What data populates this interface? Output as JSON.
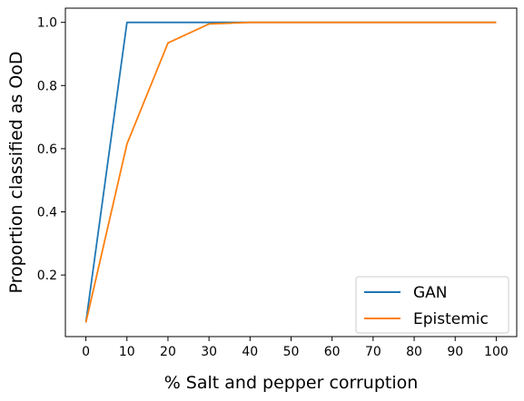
{
  "chart_data": {
    "type": "line",
    "xlabel": "% Salt and pepper corruption",
    "ylabel": "Proportion classified as OoD",
    "xlim": [
      -5,
      105
    ],
    "ylim": [
      0.005,
      1.045
    ],
    "x_ticks": [
      0,
      10,
      20,
      30,
      40,
      50,
      60,
      70,
      80,
      90,
      100
    ],
    "y_ticks": [
      0.2,
      0.4,
      0.6,
      0.8,
      1.0
    ],
    "y_tick_labels": [
      "0.2",
      "0.4",
      "0.6",
      "0.8",
      "1.0"
    ],
    "grid": false,
    "legend_position": "bottom-right",
    "x": [
      0,
      10,
      20,
      30,
      40,
      50,
      60,
      70,
      80,
      90,
      100
    ],
    "series": [
      {
        "name": "GAN",
        "color": "#1f77b4",
        "values": [
          0.05,
          1.0,
          1.0,
          1.0,
          1.0,
          1.0,
          1.0,
          1.0,
          1.0,
          1.0,
          1.0
        ]
      },
      {
        "name": "Epistemic",
        "color": "#ff7f0e",
        "values": [
          0.05,
          0.615,
          0.935,
          0.995,
          1.0,
          1.0,
          1.0,
          1.0,
          1.0,
          1.0,
          1.0
        ]
      }
    ]
  }
}
